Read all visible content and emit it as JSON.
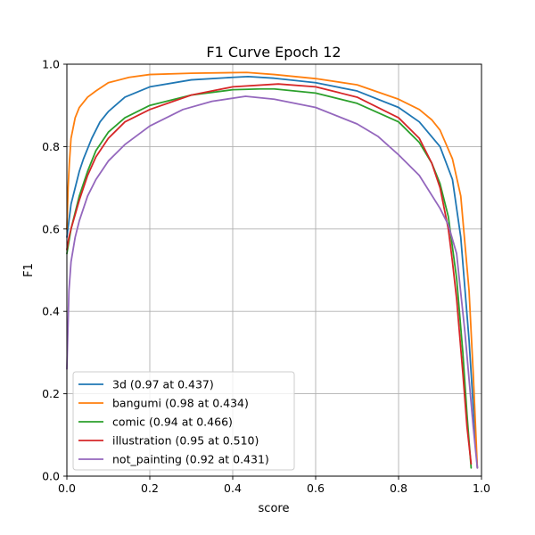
{
  "chart_data": {
    "type": "line",
    "title": "F1 Curve Epoch 12",
    "xlabel": "score",
    "ylabel": "F1",
    "xlim": [
      0,
      1
    ],
    "ylim": [
      0,
      1
    ],
    "grid": true,
    "legend_position": "lower-left",
    "x_ticks": [
      {
        "value": 0.0,
        "label": "0.0"
      },
      {
        "value": 0.2,
        "label": "0.2"
      },
      {
        "value": 0.4,
        "label": "0.4"
      },
      {
        "value": 0.6,
        "label": "0.6"
      },
      {
        "value": 0.8,
        "label": "0.8"
      },
      {
        "value": 1.0,
        "label": "1.0"
      }
    ],
    "y_ticks": [
      {
        "value": 0.0,
        "label": "0.0"
      },
      {
        "value": 0.2,
        "label": "0.2"
      },
      {
        "value": 0.4,
        "label": "0.4"
      },
      {
        "value": 0.6,
        "label": "0.6"
      },
      {
        "value": 0.8,
        "label": "0.8"
      },
      {
        "value": 1.0,
        "label": "1.0"
      }
    ],
    "series": [
      {
        "name": "3d (0.97 at 0.437)",
        "key": "3d",
        "color": "#1f77b4",
        "x": [
          0.0,
          0.005,
          0.01,
          0.02,
          0.03,
          0.04,
          0.06,
          0.08,
          0.1,
          0.14,
          0.2,
          0.3,
          0.4,
          0.437,
          0.5,
          0.6,
          0.7,
          0.8,
          0.85,
          0.9,
          0.93,
          0.95,
          0.97,
          0.98,
          0.99
        ],
        "y": [
          0.58,
          0.62,
          0.66,
          0.7,
          0.74,
          0.77,
          0.82,
          0.86,
          0.885,
          0.92,
          0.945,
          0.962,
          0.968,
          0.97,
          0.966,
          0.955,
          0.935,
          0.895,
          0.86,
          0.8,
          0.72,
          0.58,
          0.33,
          0.17,
          0.02
        ]
      },
      {
        "name": "bangumi (0.98 at 0.434)",
        "key": "bangumi",
        "color": "#ff7f0e",
        "x": [
          0.0,
          0.003,
          0.006,
          0.01,
          0.02,
          0.03,
          0.05,
          0.07,
          0.1,
          0.15,
          0.2,
          0.3,
          0.434,
          0.5,
          0.6,
          0.7,
          0.8,
          0.85,
          0.88,
          0.9,
          0.93,
          0.95,
          0.97,
          0.98,
          0.99
        ],
        "y": [
          0.6,
          0.7,
          0.76,
          0.82,
          0.87,
          0.895,
          0.92,
          0.935,
          0.955,
          0.968,
          0.975,
          0.978,
          0.98,
          0.975,
          0.965,
          0.95,
          0.915,
          0.89,
          0.865,
          0.84,
          0.77,
          0.68,
          0.45,
          0.25,
          0.02
        ]
      },
      {
        "name": "comic (0.94 at 0.466)",
        "key": "comic",
        "color": "#2ca02c",
        "x": [
          0.0,
          0.005,
          0.01,
          0.02,
          0.03,
          0.05,
          0.07,
          0.1,
          0.14,
          0.2,
          0.3,
          0.4,
          0.466,
          0.5,
          0.6,
          0.7,
          0.8,
          0.85,
          0.88,
          0.9,
          0.92,
          0.94,
          0.955,
          0.965,
          0.975
        ],
        "y": [
          0.54,
          0.57,
          0.6,
          0.64,
          0.68,
          0.74,
          0.79,
          0.835,
          0.87,
          0.9,
          0.925,
          0.938,
          0.94,
          0.94,
          0.93,
          0.905,
          0.86,
          0.81,
          0.76,
          0.71,
          0.63,
          0.48,
          0.3,
          0.15,
          0.02
        ]
      },
      {
        "name": "illustration (0.95 at 0.510)",
        "key": "illustration",
        "color": "#d62728",
        "x": [
          0.0,
          0.005,
          0.01,
          0.02,
          0.03,
          0.05,
          0.07,
          0.1,
          0.14,
          0.2,
          0.3,
          0.4,
          0.51,
          0.6,
          0.7,
          0.8,
          0.85,
          0.88,
          0.9,
          0.92,
          0.93,
          0.94,
          0.955,
          0.965,
          0.975
        ],
        "y": [
          0.55,
          0.58,
          0.6,
          0.635,
          0.67,
          0.73,
          0.775,
          0.82,
          0.86,
          0.89,
          0.925,
          0.945,
          0.952,
          0.945,
          0.92,
          0.87,
          0.82,
          0.76,
          0.7,
          0.6,
          0.52,
          0.43,
          0.25,
          0.12,
          0.03
        ]
      },
      {
        "name": "not_painting (0.92 at 0.431)",
        "key": "not_painting",
        "color": "#9467bd",
        "x": [
          0.0,
          0.005,
          0.01,
          0.02,
          0.03,
          0.05,
          0.07,
          0.1,
          0.14,
          0.2,
          0.28,
          0.35,
          0.431,
          0.5,
          0.6,
          0.7,
          0.75,
          0.8,
          0.85,
          0.9,
          0.92,
          0.94,
          0.96,
          0.98,
          0.99
        ],
        "y": [
          0.26,
          0.45,
          0.52,
          0.58,
          0.62,
          0.68,
          0.72,
          0.765,
          0.805,
          0.85,
          0.89,
          0.91,
          0.922,
          0.915,
          0.895,
          0.855,
          0.825,
          0.78,
          0.73,
          0.65,
          0.61,
          0.54,
          0.35,
          0.12,
          0.02
        ]
      }
    ]
  }
}
